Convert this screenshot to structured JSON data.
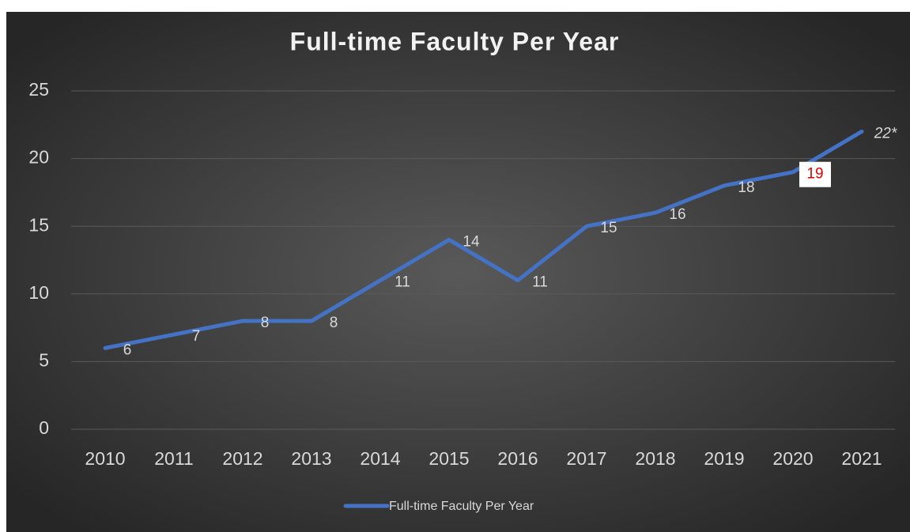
{
  "chart_data": {
    "type": "line",
    "title": "Full-time Faculty Per Year",
    "categories": [
      "2010",
      "2011",
      "2012",
      "2013",
      "2014",
      "2015",
      "2016",
      "2017",
      "2018",
      "2019",
      "2020",
      "2021"
    ],
    "series": [
      {
        "name": "Full-time Faculty Per Year",
        "color": "#4472c4",
        "values": [
          6,
          7,
          8,
          8,
          11,
          14,
          11,
          15,
          16,
          18,
          19,
          22
        ],
        "value_labels": [
          "6",
          "7",
          "8",
          "8",
          "11",
          "14",
          "11",
          "15",
          "16",
          "18",
          "19",
          "22*"
        ]
      }
    ],
    "ylim": [
      0,
      25
    ],
    "yticks": [
      0,
      5,
      10,
      15,
      20,
      25
    ],
    "grid": true,
    "legend": "bottom"
  }
}
